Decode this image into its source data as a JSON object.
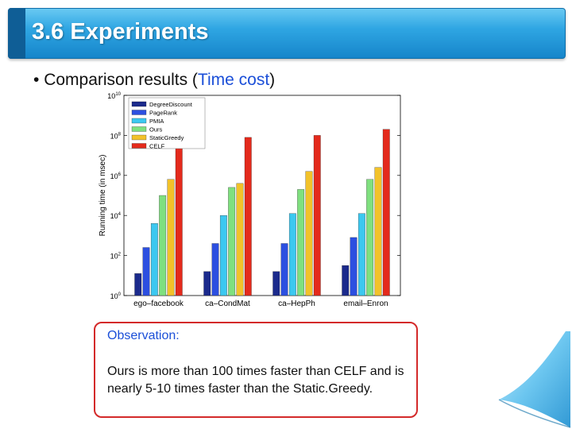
{
  "slide": {
    "title": "3.6 Experiments",
    "bullet_prefix": "Comparison results (",
    "bullet_highlight": "Time cost",
    "bullet_suffix": ")",
    "observation_title": "Observation:",
    "observation_text": "Ours is more than 100 times faster than CELF and is nearly 5-10 times faster than the Static.Greedy."
  },
  "chart_data": {
    "type": "bar",
    "ylabel": "Running time (in msec)",
    "yscale": "log",
    "ylim_exp": [
      0,
      10
    ],
    "ytick_exponents": [
      0,
      2,
      4,
      6,
      8,
      10
    ],
    "ytick_base": "10",
    "categories": [
      "ego–facebook",
      "ca–CondMat",
      "ca–HepPh",
      "email–Enron"
    ],
    "legend_position": "top-left",
    "series": [
      {
        "name": "DegreeDiscount",
        "color": "#1b2a8c",
        "exponents": [
          1.1,
          1.2,
          1.2,
          1.5
        ]
      },
      {
        "name": "PageRank",
        "color": "#2c4fe0",
        "exponents": [
          2.4,
          2.6,
          2.6,
          2.9
        ]
      },
      {
        "name": "PMIA",
        "color": "#3cc8f0",
        "exponents": [
          3.6,
          4.0,
          4.1,
          4.1
        ]
      },
      {
        "name": "Ours",
        "color": "#7fe07f",
        "exponents": [
          5.0,
          5.4,
          5.3,
          5.8
        ]
      },
      {
        "name": "StaticGreedy",
        "color": "#f2c22a",
        "exponents": [
          5.8,
          5.6,
          6.2,
          6.4
        ]
      },
      {
        "name": "CELF",
        "color": "#e42a1c",
        "exponents": [
          7.5,
          7.9,
          8.0,
          8.3
        ]
      }
    ]
  }
}
